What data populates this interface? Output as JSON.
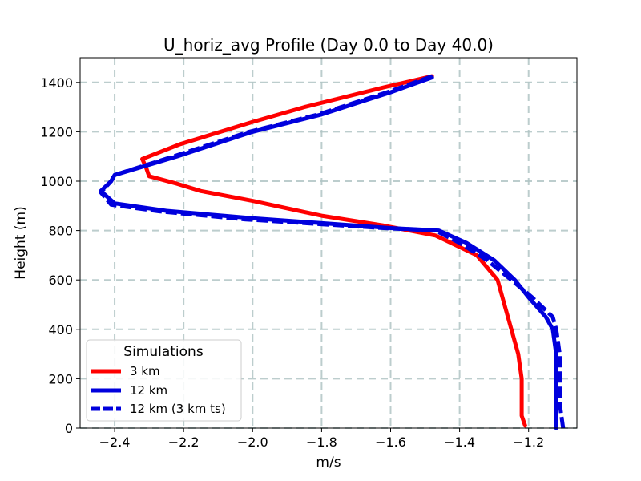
{
  "chart_data": {
    "type": "line",
    "title": "U_horiz_avg Profile (Day 0.0 to Day 40.0)",
    "xlabel": "m/s",
    "ylabel": "Height (m)",
    "xlim": [
      -2.5,
      -1.06
    ],
    "ylim": [
      0,
      1500
    ],
    "xticks": [
      -2.4,
      -2.2,
      -2.0,
      -1.8,
      -1.6,
      -1.4,
      -1.2
    ],
    "xtick_labels": [
      "−2.4",
      "−2.2",
      "−2.0",
      "−1.8",
      "−1.6",
      "−1.4",
      "−1.2"
    ],
    "yticks": [
      0,
      200,
      400,
      600,
      800,
      1000,
      1200,
      1400
    ],
    "ytick_labels": [
      "0",
      "200",
      "400",
      "600",
      "800",
      "1000",
      "1200",
      "1400"
    ],
    "grid": true,
    "legend": {
      "title": "Simulations",
      "placement": "lower-left"
    },
    "series": [
      {
        "name": "3 km",
        "color": "#ff0000",
        "style": "solid",
        "x": [
          -1.21,
          -1.22,
          -1.22,
          -1.22,
          -1.23,
          -1.25,
          -1.27,
          -1.29,
          -1.35,
          -1.47,
          -1.62,
          -1.8,
          -2.0,
          -2.15,
          -2.22,
          -2.3,
          -2.31,
          -2.32,
          -2.21,
          -2.0,
          -1.85,
          -1.62,
          -1.48
        ],
        "y": [
          10,
          50,
          100,
          200,
          300,
          400,
          500,
          600,
          700,
          780,
          820,
          860,
          920,
          960,
          990,
          1020,
          1060,
          1090,
          1150,
          1240,
          1300,
          1380,
          1425
        ]
      },
      {
        "name": "12 km",
        "color": "#0000dd",
        "style": "solid",
        "x": [
          -1.12,
          -1.12,
          -1.12,
          -1.12,
          -1.13,
          -1.15,
          -1.2,
          -1.24,
          -1.3,
          -1.38,
          -1.46,
          -1.6,
          -2.0,
          -2.25,
          -2.4,
          -2.44,
          -2.41,
          -2.4,
          -2.22,
          -2.0,
          -1.8,
          -1.6,
          -1.48
        ],
        "y": [
          0,
          100,
          200,
          300,
          400,
          450,
          530,
          600,
          680,
          750,
          800,
          810,
          850,
          880,
          910,
          960,
          1000,
          1025,
          1100,
          1200,
          1270,
          1360,
          1420
        ]
      },
      {
        "name": "12 km (3 km ts)",
        "color": "#0000dd",
        "style": "dashed",
        "x": [
          -1.1,
          -1.11,
          -1.11,
          -1.11,
          -1.12,
          -1.13,
          -1.19,
          -1.25,
          -1.32,
          -1.4,
          -1.47,
          -1.62,
          -2.02,
          -2.27,
          -2.41,
          -2.44,
          -2.41,
          -2.4,
          -2.23,
          -2.01,
          -1.81,
          -1.61,
          -1.48
        ],
        "y": [
          0,
          100,
          200,
          300,
          400,
          450,
          530,
          600,
          680,
          750,
          800,
          810,
          845,
          878,
          905,
          955,
          1000,
          1025,
          1100,
          1200,
          1270,
          1360,
          1425
        ]
      }
    ]
  }
}
